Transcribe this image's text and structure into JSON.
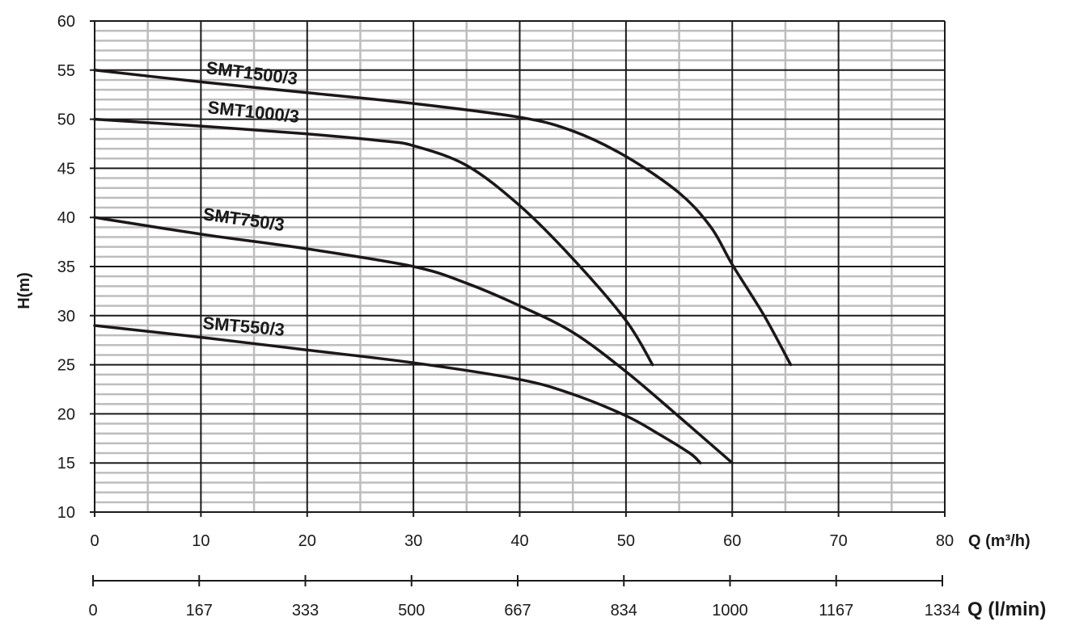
{
  "chart_data": {
    "type": "line",
    "title": "",
    "ylabel": "H(m)",
    "xlabel": "Q (m³/h)",
    "x2label": "Q (l/min)",
    "xlim": [
      0,
      80
    ],
    "ylim": [
      10,
      60
    ],
    "x_ticks": [
      "0",
      "10",
      "20",
      "30",
      "40",
      "50",
      "60",
      "70",
      "80"
    ],
    "y_ticks": [
      "10",
      "15",
      "20",
      "25",
      "30",
      "35",
      "40",
      "45",
      "50",
      "55",
      "60"
    ],
    "x2_ticks": [
      "0",
      "167",
      "333",
      "500",
      "667",
      "834",
      "1000",
      "1167",
      "1334"
    ],
    "grid": true,
    "series": [
      {
        "name": "SMT1500/3",
        "points": [
          [
            0,
            55
          ],
          [
            10,
            53.8
          ],
          [
            20,
            52.7
          ],
          [
            30,
            51.6
          ],
          [
            40,
            50.2
          ],
          [
            45,
            48.8
          ],
          [
            50,
            46.2
          ],
          [
            55,
            42.5
          ],
          [
            58,
            39
          ],
          [
            60,
            35.2
          ],
          [
            63,
            30
          ],
          [
            65.5,
            25
          ]
        ]
      },
      {
        "name": "SMT1000/3",
        "points": [
          [
            0,
            50
          ],
          [
            10,
            49.3
          ],
          [
            20,
            48.5
          ],
          [
            27,
            47.8
          ],
          [
            30,
            47.3
          ],
          [
            35,
            45.3
          ],
          [
            40,
            41.2
          ],
          [
            45,
            35.8
          ],
          [
            50,
            29.5
          ],
          [
            52.5,
            25
          ]
        ]
      },
      {
        "name": "SMT750/3",
        "points": [
          [
            0,
            40
          ],
          [
            10,
            38.3
          ],
          [
            20,
            36.8
          ],
          [
            30,
            35
          ],
          [
            35,
            33.3
          ],
          [
            40,
            31
          ],
          [
            45,
            28.3
          ],
          [
            50,
            24.3
          ],
          [
            55,
            19.7
          ],
          [
            60,
            15
          ]
        ]
      },
      {
        "name": "SMT550/3",
        "points": [
          [
            0,
            29
          ],
          [
            10,
            27.8
          ],
          [
            20,
            26.5
          ],
          [
            30,
            25.2
          ],
          [
            40,
            23.5
          ],
          [
            45,
            22
          ],
          [
            50,
            19.8
          ],
          [
            53,
            18
          ],
          [
            56,
            16
          ],
          [
            57,
            15
          ]
        ]
      }
    ]
  }
}
